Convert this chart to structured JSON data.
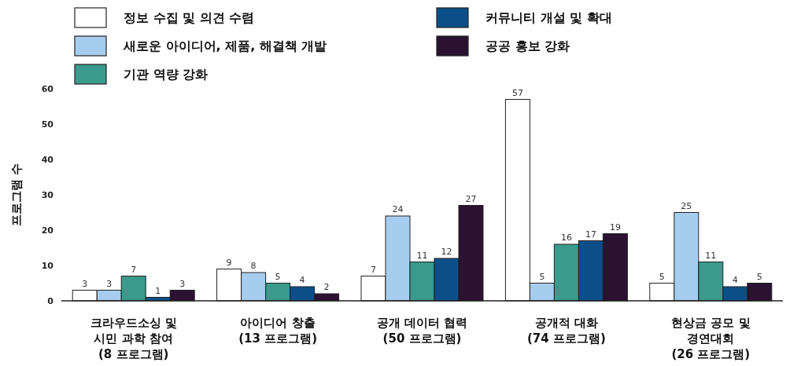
{
  "chart_data": {
    "type": "bar",
    "ylabel": "프로그램 수",
    "categories": [
      "크라우드소싱 및\n시민 과학 참여\n(8 프로그램)",
      "아이디어 창출\n(13 프로그램)",
      "공개 데이터 협력\n(50 프로그램)",
      "공개적 대화\n(74 프로그램)",
      "현상금 공모 및\n경연대회\n(26 프로그램)"
    ],
    "series": [
      {
        "name": "정보 수집 및 의견 수렴",
        "color": "#ffffff",
        "values": [
          3,
          9,
          7,
          57,
          5
        ]
      },
      {
        "name": "새로운 아이디어, 제품, 해결책 개발",
        "color": "#a6cdee",
        "values": [
          3,
          8,
          24,
          5,
          25
        ]
      },
      {
        "name": "기관 역량 강화",
        "color": "#3a9a8c",
        "values": [
          7,
          5,
          11,
          16,
          11
        ]
      },
      {
        "name": "커뮤니티 개설 및 확대",
        "color": "#0b4f8a",
        "values": [
          1,
          4,
          12,
          17,
          4
        ]
      },
      {
        "name": "공공 홍보 강화",
        "color": "#2a1230",
        "values": [
          3,
          2,
          27,
          19,
          5
        ]
      }
    ],
    "ylim": [
      0,
      60
    ],
    "yticks": [
      0,
      10,
      20,
      30,
      40,
      50,
      60
    ],
    "data_labels": true,
    "grid": false,
    "legend": "top"
  }
}
